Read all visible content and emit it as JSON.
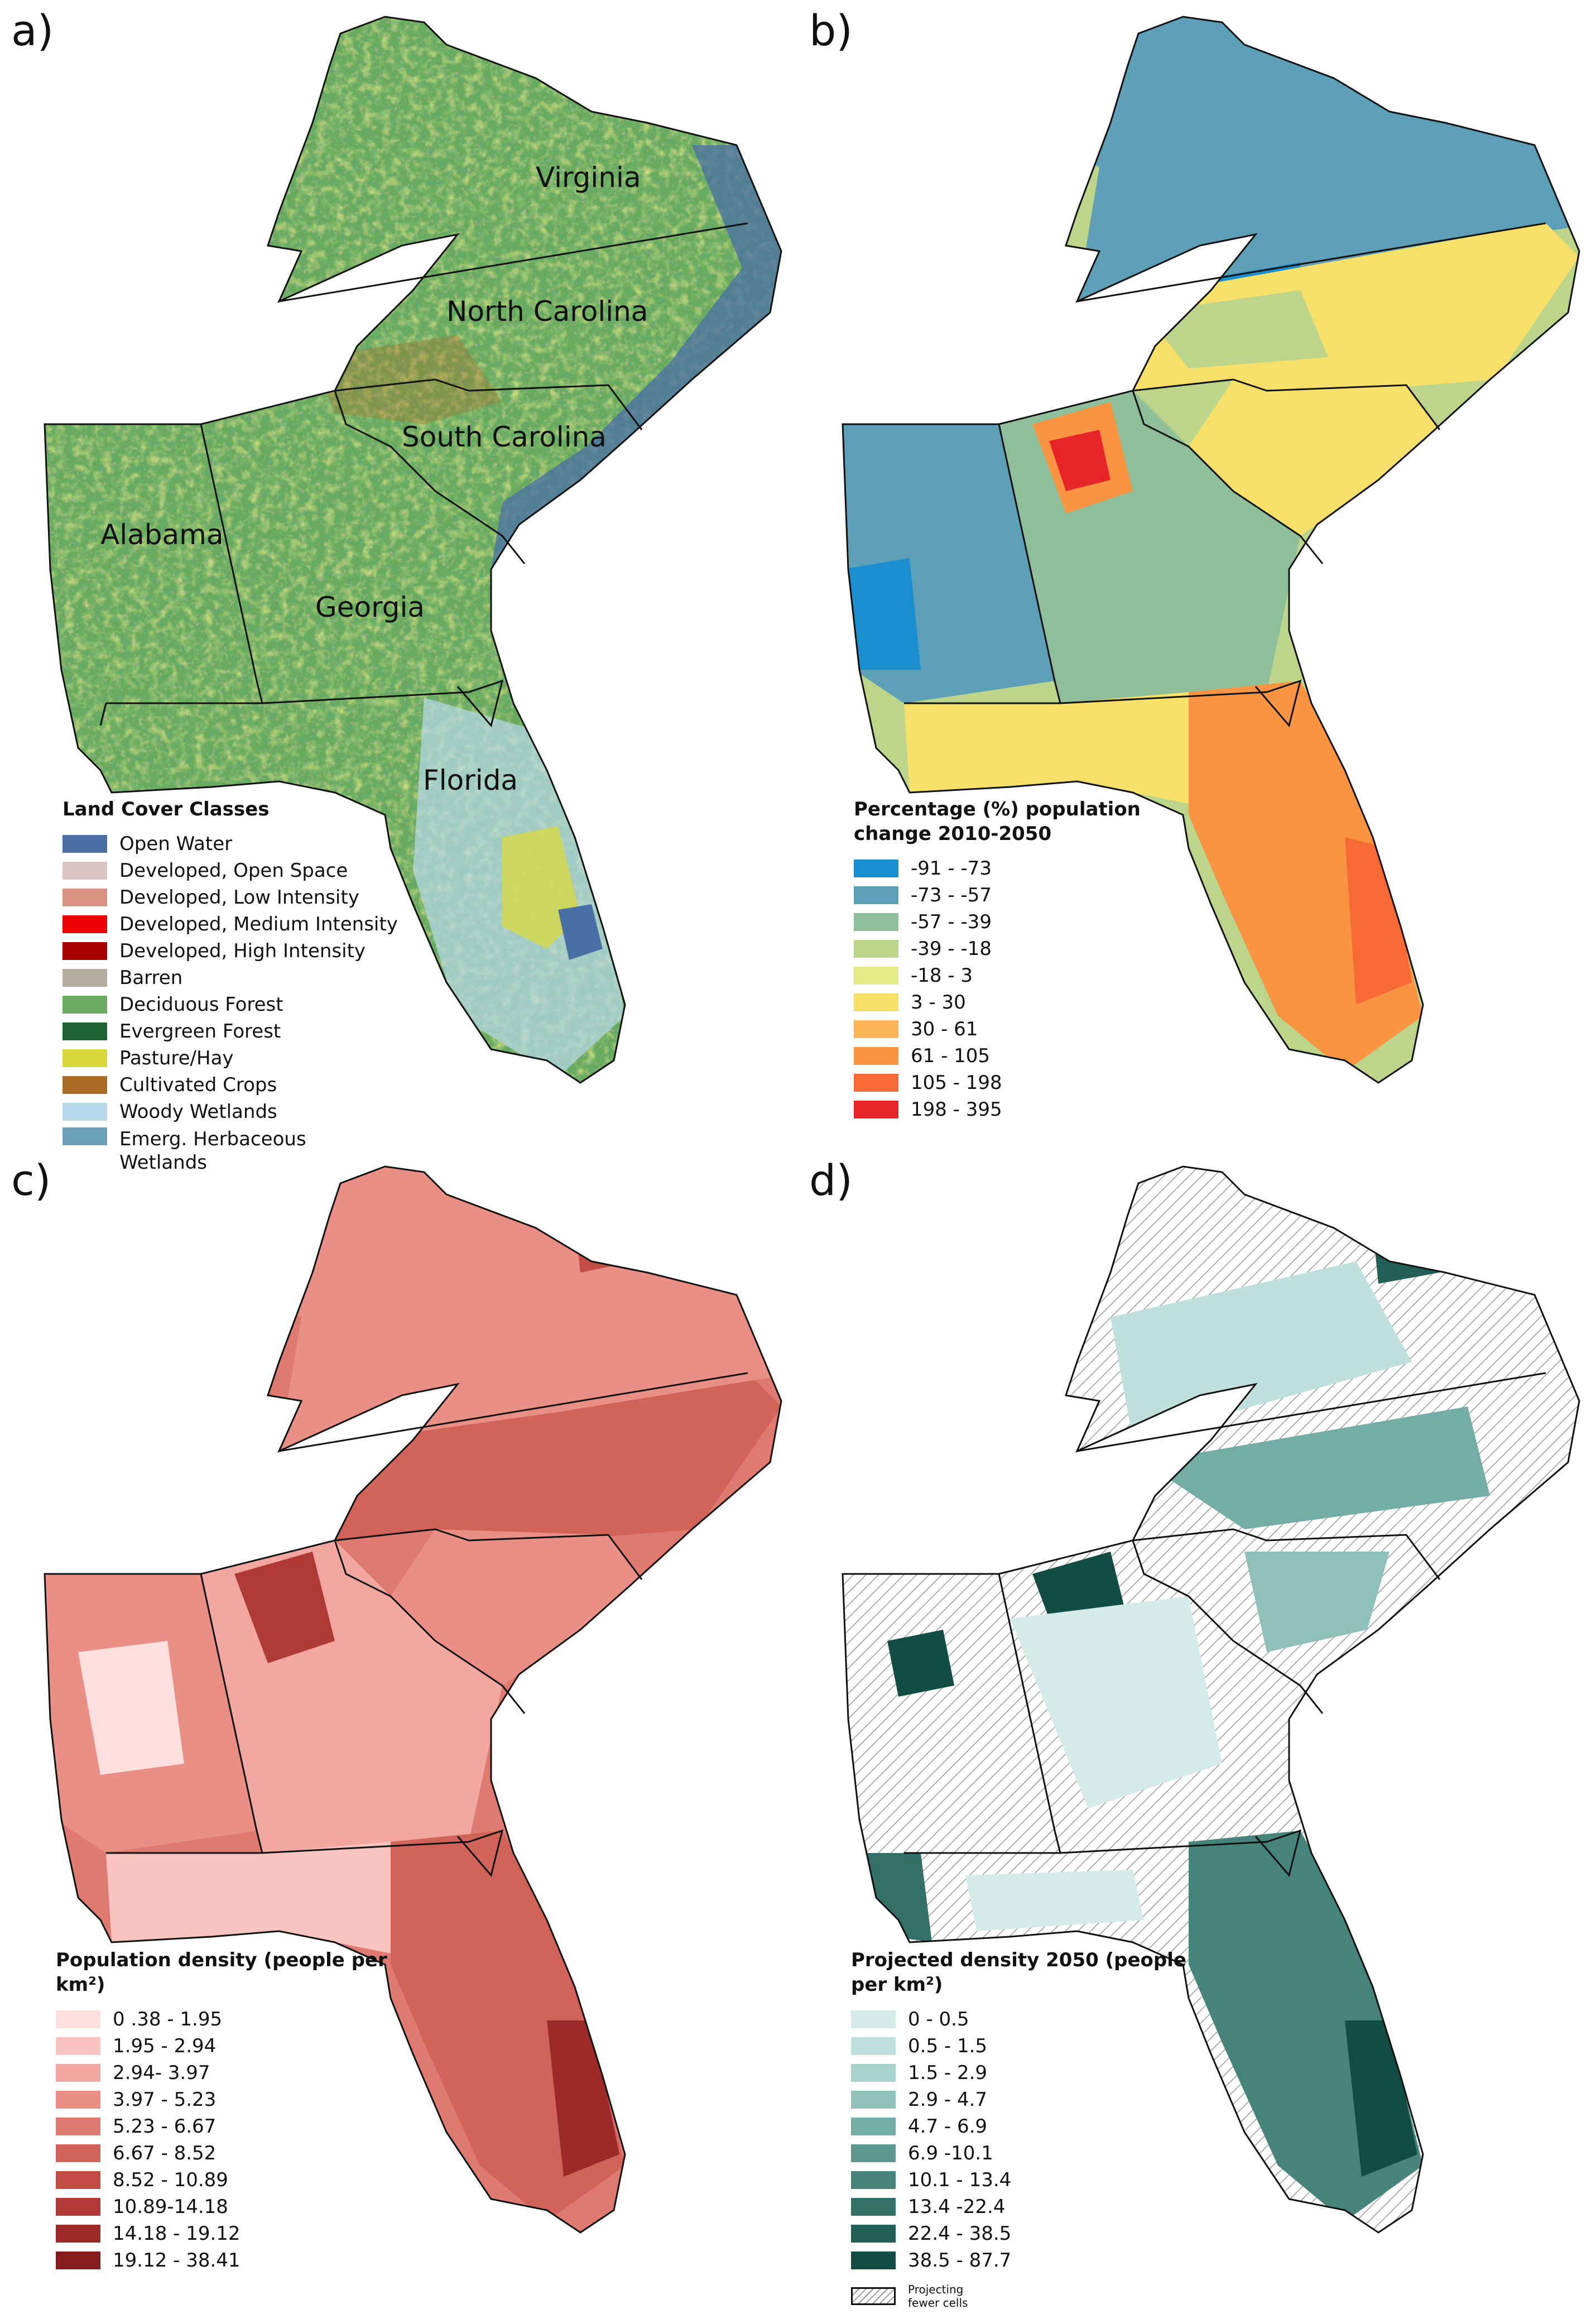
{
  "panels": {
    "a": {
      "letter": "a)",
      "state_labels": {
        "virginia": "Virginia",
        "north_carolina": "North Carolina",
        "south_carolina": "South Carolina",
        "alabama": "Alabama",
        "georgia": "Georgia",
        "florida": "Florida"
      },
      "legend": {
        "title": "Land Cover Classes",
        "items": [
          {
            "label": "Open Water",
            "color": "#4a6fa5"
          },
          {
            "label": "Developed, Open Space",
            "color": "#dec5c5"
          },
          {
            "label": "Developed, Low Intensity",
            "color": "#d99282"
          },
          {
            "label": "Developed, Medium Intensity",
            "color": "#eb0000"
          },
          {
            "label": "Developed, High Intensity",
            "color": "#ab0000"
          },
          {
            "label": "Barren",
            "color": "#b3ac9f"
          },
          {
            "label": "Deciduous Forest",
            "color": "#68ab5f"
          },
          {
            "label": "Evergreen Forest",
            "color": "#1c6330"
          },
          {
            "label": "Pasture/Hay",
            "color": "#dbd83d"
          },
          {
            "label": "Cultivated Crops",
            "color": "#ab6c28"
          },
          {
            "label": "Woody Wetlands",
            "color": "#b8d9eb"
          },
          {
            "label": "Emerg. Herbaceous Wetlands",
            "color": "#6c9fb8"
          }
        ]
      }
    },
    "b": {
      "letter": "b)",
      "legend": {
        "title": "Percentage (%) population change 2010-2050",
        "items": [
          {
            "label": "-91 - -73",
            "color": "#1a8fd0"
          },
          {
            "label": "-73 - -57",
            "color": "#5e9fb8"
          },
          {
            "label": "-57 - -39",
            "color": "#8fbf9a"
          },
          {
            "label": "-39 - -18",
            "color": "#bcd58a"
          },
          {
            "label": "-18 - 3",
            "color": "#e2ea86"
          },
          {
            "label": "3 - 30",
            "color": "#f6e06a"
          },
          {
            "label": "30 - 61",
            "color": "#fbb45a"
          },
          {
            "label": "61 - 105",
            "color": "#f99443"
          },
          {
            "label": "105 - 198",
            "color": "#f86a35"
          },
          {
            "label": "198 - 395",
            "color": "#e8262a"
          }
        ]
      }
    },
    "c": {
      "letter": "c)",
      "legend": {
        "title": "Population density (people per km²)",
        "items": [
          {
            "label": "0 .38 - 1.95",
            "color": "#fde0de"
          },
          {
            "label": "1.95 - 2.94",
            "color": "#f9c4bf"
          },
          {
            "label": "2.94- 3.97",
            "color": "#f2a8a1"
          },
          {
            "label": "3.97 - 5.23",
            "color": "#e98f86"
          },
          {
            "label": "5.23 - 6.67",
            "color": "#df7a70"
          },
          {
            "label": "6.67 - 8.52",
            "color": "#d1635a"
          },
          {
            "label": "8.52 - 10.89",
            "color": "#c24d45"
          },
          {
            "label": "10.89-14.18",
            "color": "#b03a35"
          },
          {
            "label": "14.18 - 19.12",
            "color": "#9c2a28"
          },
          {
            "label": "19.12 - 38.41",
            "color": "#861c1e"
          }
        ]
      }
    },
    "d": {
      "letter": "d)",
      "legend": {
        "title": "Projected density 2050 (people per km²)",
        "items": [
          {
            "label": "0 - 0.5",
            "color": "#d4ebea"
          },
          {
            "label": "0.5 - 1.5",
            "color": "#bfe0dc"
          },
          {
            "label": "1.5 - 2.9",
            "color": "#a8d2cc"
          },
          {
            "label": "2.9 - 4.7",
            "color": "#8fc0b9"
          },
          {
            "label": "4.7 - 6.9",
            "color": "#74ada5"
          },
          {
            "label": "6.9 -10.1",
            "color": "#5c9890"
          },
          {
            "label": "10.1 - 13.4",
            "color": "#46837b"
          },
          {
            "label": "13.4 -22.4",
            "color": "#327068"
          },
          {
            "label": "22.4 - 38.5",
            "color": "#215f57"
          },
          {
            "label": "38.5 - 87.7",
            "color": "#114d45"
          }
        ],
        "hatch_label": "Projecting fewer cells"
      }
    }
  }
}
